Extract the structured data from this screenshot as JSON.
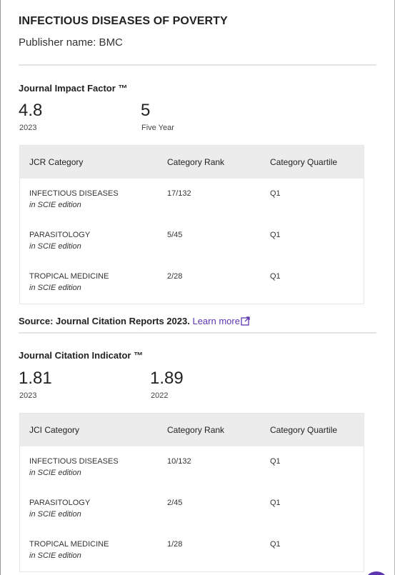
{
  "journal": {
    "title": "INFECTIOUS DISEASES OF POVERTY",
    "publisher": "Publisher name: BMC"
  },
  "impact_factor": {
    "heading": "Journal Impact Factor ™",
    "metrics": [
      {
        "value": "4.8",
        "label": "2023"
      },
      {
        "value": "5",
        "label": "Five Year"
      }
    ],
    "table": {
      "headers": [
        "JCR Category",
        "Category Rank",
        "Category Quartile"
      ],
      "rows": [
        {
          "category": "INFECTIOUS DISEASES",
          "edition": "in SCIE edition",
          "rank": "17/132",
          "quartile": "Q1"
        },
        {
          "category": "PARASITOLOGY",
          "edition": "in SCIE edition",
          "rank": "5/45",
          "quartile": "Q1"
        },
        {
          "category": "TROPICAL MEDICINE",
          "edition": "in SCIE edition",
          "rank": "2/28",
          "quartile": "Q1"
        }
      ]
    }
  },
  "source": {
    "text": "Source: Journal Citation Reports  2023.",
    "link": "Learn more"
  },
  "citation_indicator": {
    "heading": "Journal Citation Indicator ™",
    "metrics": [
      {
        "value": "1.81",
        "label": "2023"
      },
      {
        "value": "1.89",
        "label": "2022"
      }
    ],
    "table": {
      "headers": [
        "JCI Category",
        "Category Rank",
        "Category Quartile"
      ],
      "rows": [
        {
          "category": "INFECTIOUS DISEASES",
          "edition": "in SCIE edition",
          "rank": "10/132",
          "quartile": "Q1"
        },
        {
          "category": "PARASITOLOGY",
          "edition": "in SCIE edition",
          "rank": "2/45",
          "quartile": "Q1"
        },
        {
          "category": "TROPICAL MEDICINE",
          "edition": "in SCIE edition",
          "rank": "1/28",
          "quartile": "Q1"
        }
      ]
    }
  },
  "colors": {
    "link": "#5e35b1",
    "table_header_bg": "#ececec"
  },
  "icons": {
    "external_link": "external-link-icon"
  }
}
